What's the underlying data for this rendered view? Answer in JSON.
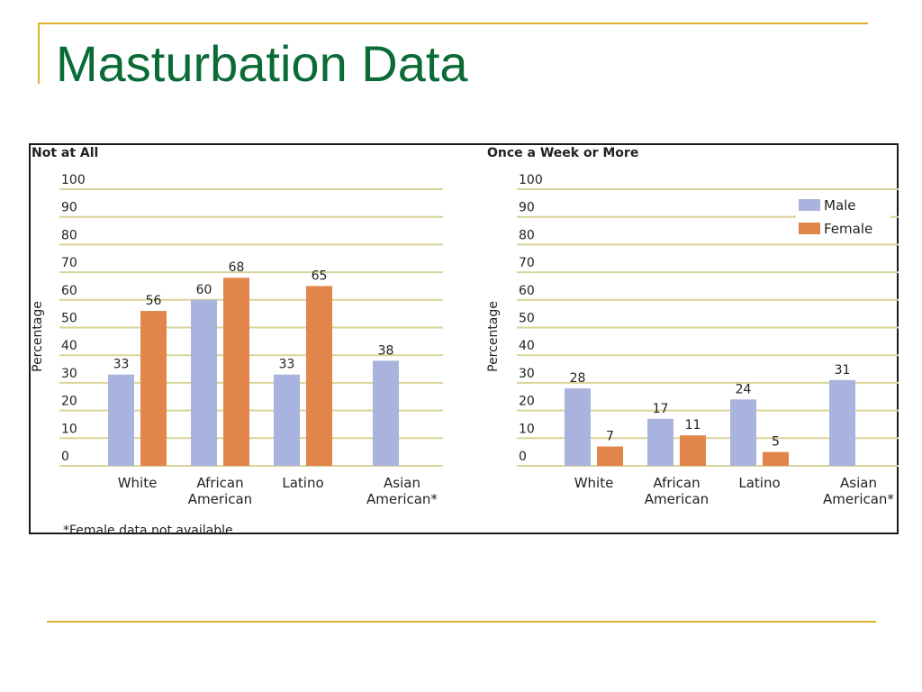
{
  "slide": {
    "title": "Masturbation Data"
  },
  "colors": {
    "male": "#a9b4de",
    "female": "#e2854a",
    "grid": "#d9d49a",
    "title": "#0a6b36",
    "accent_rule": "#e0b02c"
  },
  "legend": {
    "male": "Male",
    "female": "Female",
    "placement": "top-right"
  },
  "footnote": "*Female data not available.",
  "chart_data": [
    {
      "type": "bar",
      "title": "Not at All",
      "ylabel": "Percentage",
      "xlabel": "",
      "ylim": [
        0,
        100
      ],
      "yticks": [
        "0",
        "10",
        "20",
        "30",
        "40",
        "50",
        "60",
        "70",
        "80",
        "90",
        "100"
      ],
      "grid": true,
      "categories": [
        [
          "White"
        ],
        [
          "African",
          "American"
        ],
        [
          "Latino"
        ],
        [
          "Asian",
          "American*"
        ]
      ],
      "series": [
        {
          "name": "Male",
          "values": [
            33,
            60,
            33,
            38
          ]
        },
        {
          "name": "Female",
          "values": [
            56,
            68,
            65,
            null
          ]
        }
      ]
    },
    {
      "type": "bar",
      "title": "Once a Week or More",
      "ylabel": "Percentage",
      "xlabel": "",
      "ylim": [
        0,
        100
      ],
      "yticks": [
        "0",
        "10",
        "20",
        "30",
        "40",
        "50",
        "60",
        "70",
        "80",
        "90",
        "100"
      ],
      "grid": true,
      "categories": [
        [
          "White"
        ],
        [
          "African",
          "American"
        ],
        [
          "Latino"
        ],
        [
          "Asian",
          "American*"
        ]
      ],
      "series": [
        {
          "name": "Male",
          "values": [
            28,
            17,
            24,
            31
          ]
        },
        {
          "name": "Female",
          "values": [
            7,
            11,
            5,
            null
          ]
        }
      ]
    }
  ]
}
